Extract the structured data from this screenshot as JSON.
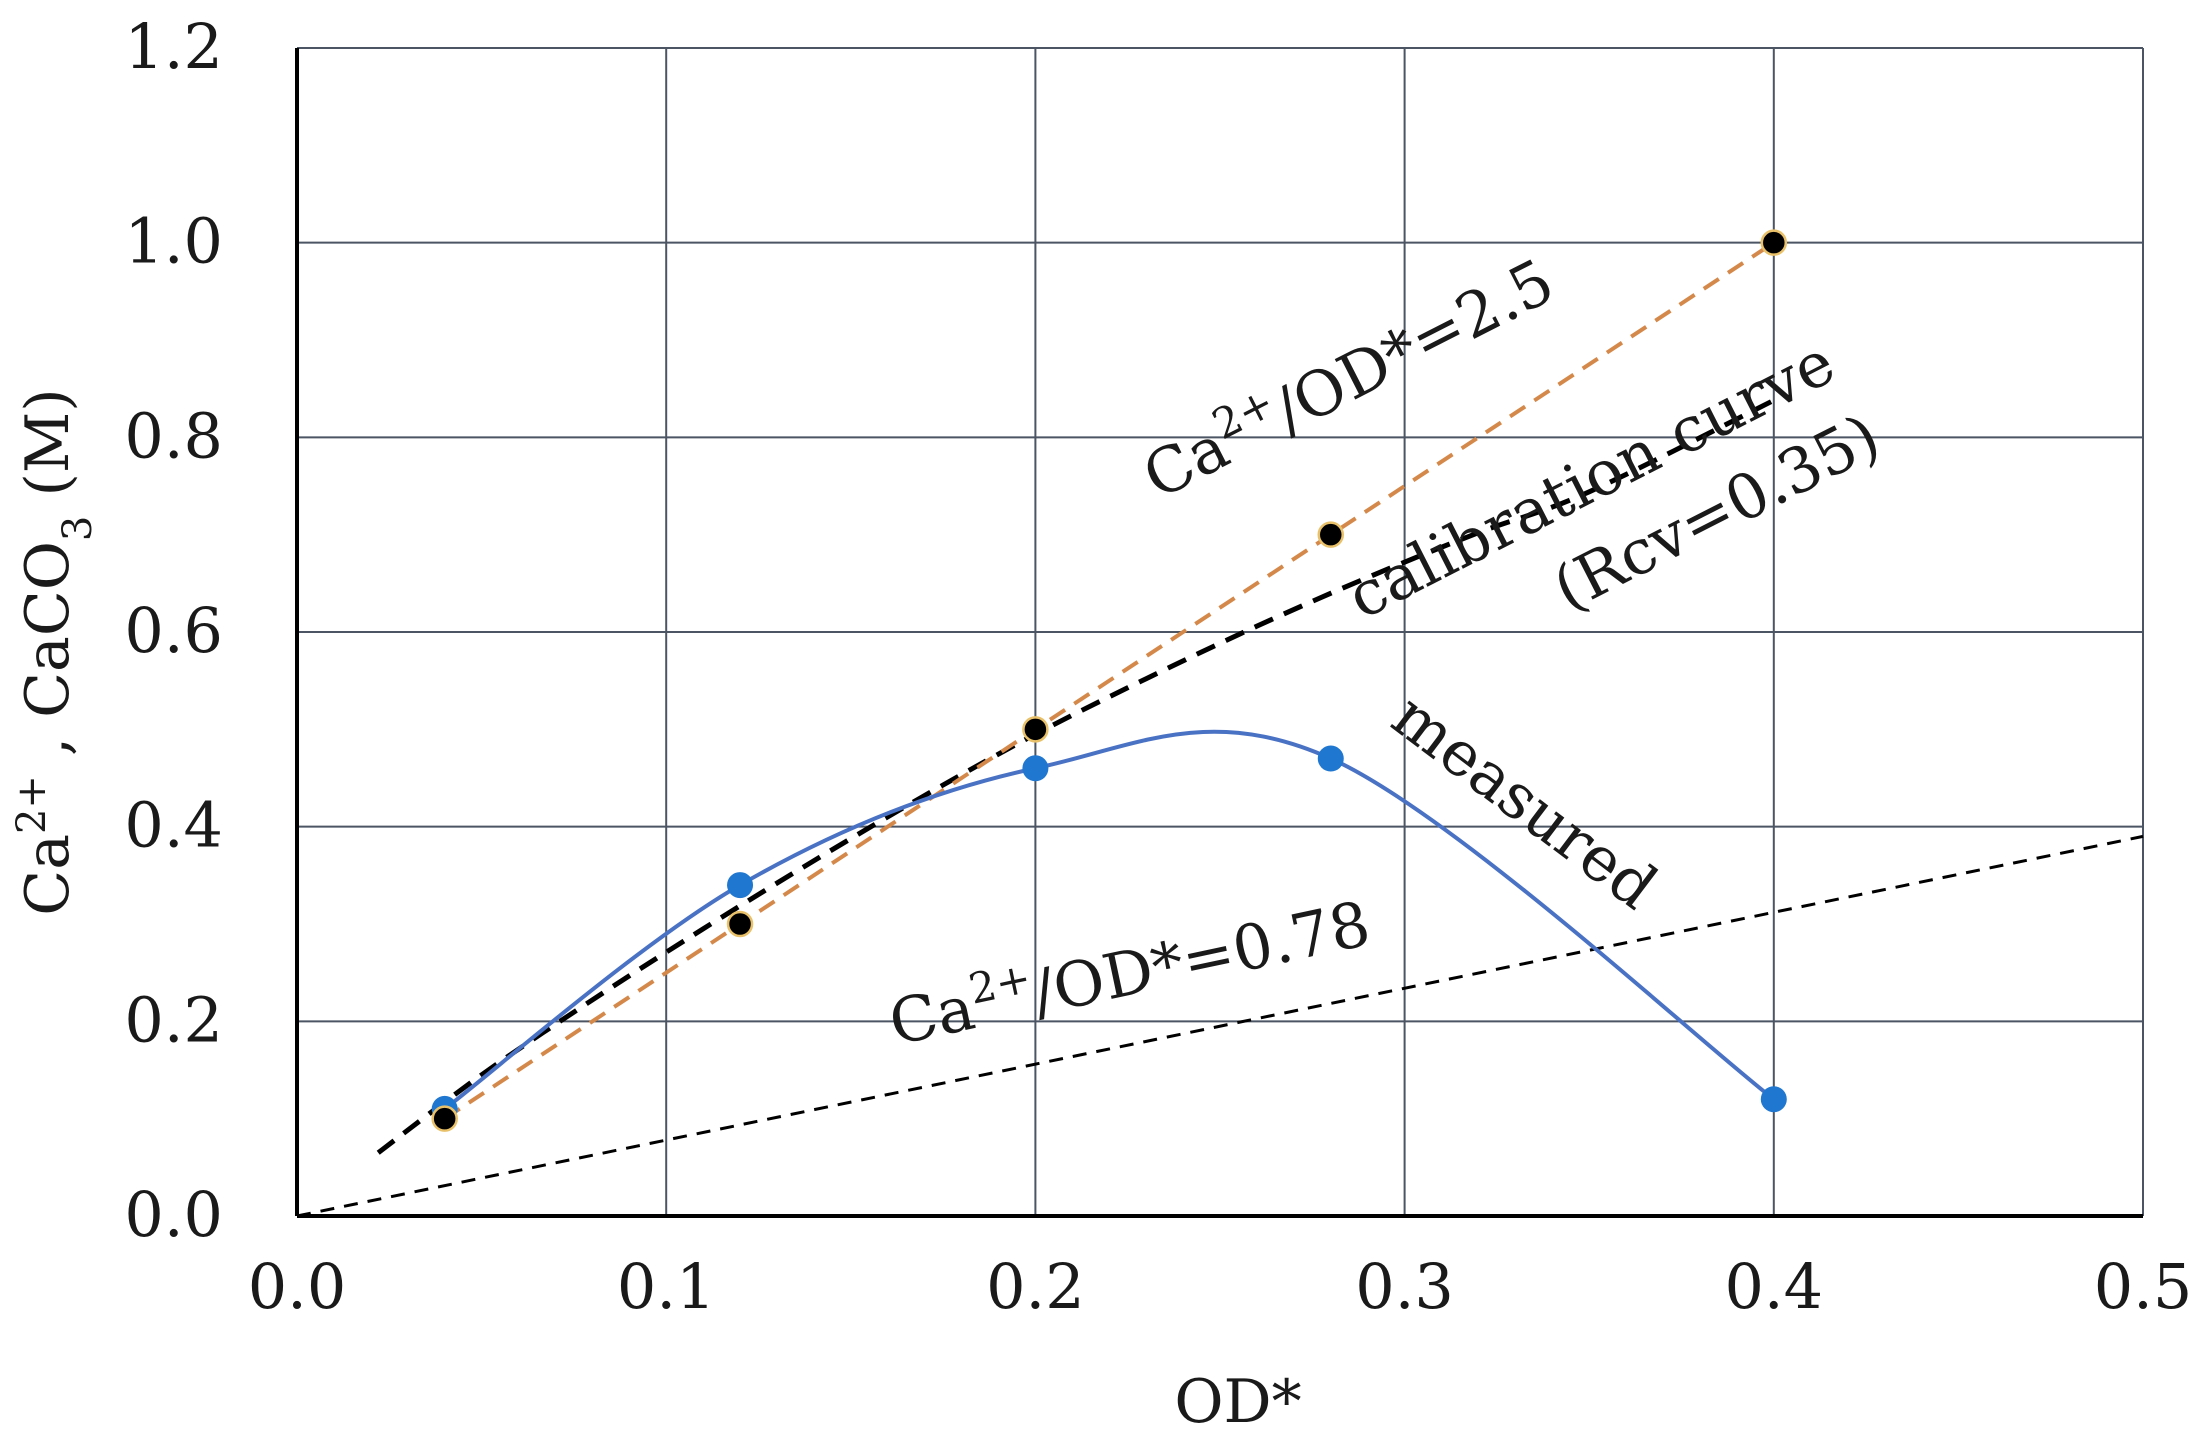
{
  "chart_data": {
    "type": "line",
    "title": "",
    "xlabel": "OD*",
    "ylabel": "Ca2+ , CaCO3 (M)",
    "ylabel_parts": {
      "base1": "Ca",
      "sup1": "2+",
      "sep": " , CaCO",
      "sub": "3",
      "unit": " (M)"
    },
    "xlim": [
      0.0,
      0.5
    ],
    "ylim": [
      0.0,
      1.2
    ],
    "x_ticks": [
      "0.0",
      "0.1",
      "0.2",
      "0.3",
      "0.4",
      "0.5"
    ],
    "y_ticks": [
      "0.0",
      "0.2",
      "0.4",
      "0.6",
      "0.8",
      "1.0",
      "1.2"
    ],
    "grid": true,
    "colors": {
      "measured": "#4a72c4",
      "measured_marker": "#1f77d0",
      "ratio_line": "#d4894a",
      "ratio_marker": "#000000",
      "calibration": "#000000",
      "grid": "#4b5563"
    },
    "series": [
      {
        "name": "measured",
        "style": "smooth-solid",
        "x": [
          0.04,
          0.12,
          0.2,
          0.28,
          0.4
        ],
        "y": [
          0.11,
          0.34,
          0.46,
          0.47,
          0.12
        ]
      },
      {
        "name": "Ca2+/OD*=2.5",
        "style": "dashed-markers",
        "x": [
          0.04,
          0.12,
          0.2,
          0.28,
          0.4
        ],
        "y": [
          0.1,
          0.3,
          0.5,
          0.7,
          1.0
        ]
      },
      {
        "name": "calibration curve (Rcv=0.35)",
        "style": "dashed-bold",
        "x": [
          0.022,
          0.05,
          0.08,
          0.11,
          0.14,
          0.17,
          0.2,
          0.23,
          0.26,
          0.29,
          0.32,
          0.35,
          0.4
        ],
        "y": [
          0.065,
          0.145,
          0.222,
          0.295,
          0.365,
          0.432,
          0.495,
          0.552,
          0.606,
          0.656,
          0.702,
          0.744,
          0.838
        ]
      },
      {
        "name": "Ca2+/OD*=0.78",
        "style": "dashed-thin",
        "x": [
          0.0,
          0.5
        ],
        "y": [
          0.0,
          0.39
        ]
      }
    ],
    "annotations": {
      "ratio_high": {
        "base": "Ca",
        "sup": "2+",
        "rest": "/OD*=2.5"
      },
      "calibration_line1": "calibration curve",
      "calibration_line2": "(Rcv=0.35)",
      "measured": "measured",
      "ratio_low": {
        "base": "Ca",
        "sup": "2+",
        "rest": "/OD*=0.78"
      }
    }
  }
}
